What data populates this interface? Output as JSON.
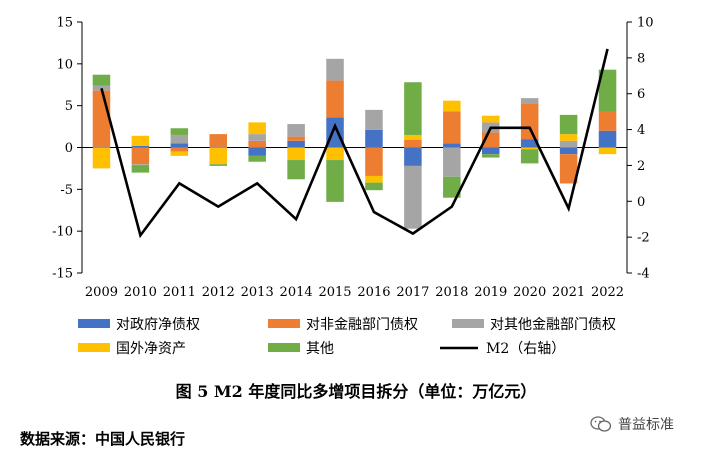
{
  "chart_data": {
    "type": "bar",
    "stacked": true,
    "categories": [
      "2009",
      "2010",
      "2011",
      "2012",
      "2013",
      "2014",
      "2015",
      "2016",
      "2017",
      "2018",
      "2019",
      "2020",
      "2021",
      "2022"
    ],
    "series": [
      {
        "name": "对政府净债权",
        "color": "#4472C4",
        "values": [
          0.1,
          0.2,
          0.5,
          0.1,
          -1.0,
          0.8,
          3.6,
          2.1,
          -2.2,
          0.5,
          -0.8,
          1.0,
          -0.8,
          2.0
        ]
      },
      {
        "name": "对非金融部门债权",
        "color": "#ED7D31",
        "values": [
          6.7,
          -2.0,
          -0.5,
          1.5,
          0.8,
          0.5,
          4.4,
          -3.4,
          0.9,
          3.8,
          1.8,
          4.2,
          -3.5,
          2.3
        ]
      },
      {
        "name": "对其他金融部门债权",
        "color": "#A5A5A5",
        "values": [
          0.6,
          -0.1,
          1.0,
          0.0,
          0.8,
          1.5,
          2.6,
          2.4,
          -7.5,
          -3.5,
          1.2,
          0.7,
          0.8,
          0.0
        ]
      },
      {
        "name": "国外净资产",
        "color": "#FFC000",
        "values": [
          -2.5,
          1.2,
          -0.5,
          -2.0,
          1.4,
          -1.5,
          -1.5,
          -0.8,
          0.6,
          1.3,
          0.8,
          -0.2,
          0.8,
          -0.8
        ]
      },
      {
        "name": "其他",
        "color": "#70AD47",
        "values": [
          1.3,
          -0.9,
          0.8,
          -0.2,
          -0.7,
          -2.3,
          -5.0,
          -0.9,
          6.3,
          -2.5,
          -0.4,
          -1.7,
          2.3,
          5.0
        ]
      }
    ],
    "line": {
      "name": "M2（右轴）",
      "color": "#000000",
      "values": [
        6.3,
        -1.9,
        1.0,
        -0.3,
        1.0,
        -1.0,
        4.2,
        -0.6,
        -1.8,
        -0.3,
        4.1,
        4.1,
        -0.4,
        8.5
      ]
    },
    "ylim_left": [
      -15,
      15
    ],
    "yticks_left": [
      15,
      10,
      5,
      0,
      -5,
      -10,
      -15
    ],
    "ylim_right": [
      -4,
      10
    ],
    "yticks_right": [
      10,
      8,
      6,
      4,
      2,
      0,
      -2,
      -4
    ],
    "grid": false,
    "legend_position": "bottom"
  },
  "legend": [
    {
      "label": "对政府净债权",
      "kind": "box",
      "color": "#4472C4"
    },
    {
      "label": "对非金融部门债权",
      "kind": "box",
      "color": "#ED7D31"
    },
    {
      "label": "对其他金融部门债权",
      "kind": "box",
      "color": "#A5A5A5"
    },
    {
      "label": "国外净资产",
      "kind": "box",
      "color": "#FFC000"
    },
    {
      "label": "其他",
      "kind": "box",
      "color": "#70AD47"
    },
    {
      "label": "M2（右轴）",
      "kind": "line",
      "color": "#000000"
    }
  ],
  "caption": "图 5   M2 年度同比多增项目拆分（单位：万亿元）",
  "source": "数据来源：中国人民银行",
  "watermark": {
    "text": "普益标准",
    "icon": "wechat-icon"
  }
}
